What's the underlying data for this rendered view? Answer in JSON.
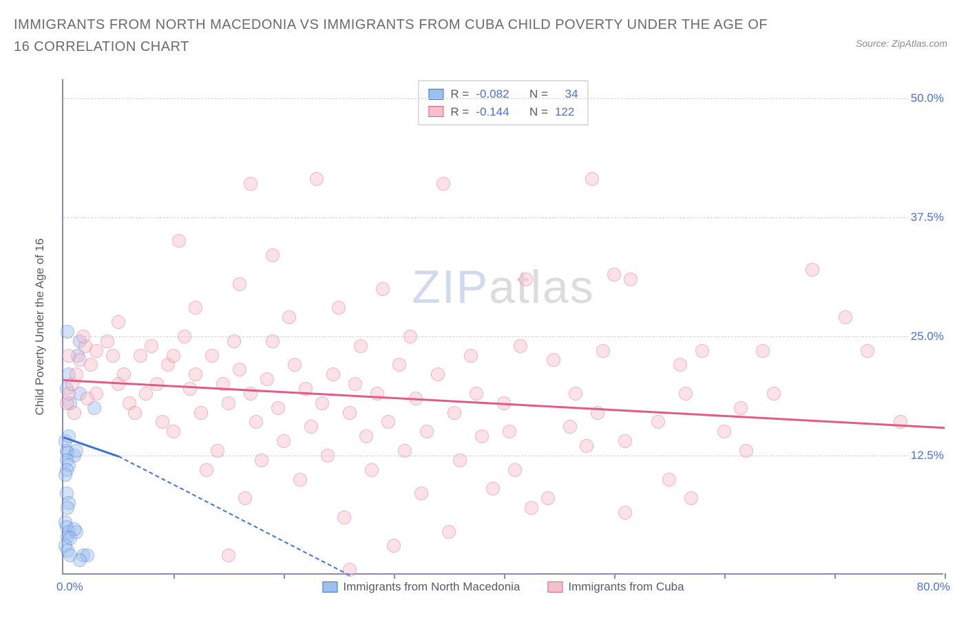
{
  "title": "IMMIGRANTS FROM NORTH MACEDONIA VS IMMIGRANTS FROM CUBA CHILD POVERTY UNDER THE AGE OF 16 CORRELATION CHART",
  "source_label": "Source: ZipAtlas.com",
  "watermark": {
    "part1": "ZIP",
    "part2": "atlas"
  },
  "y_axis_title": "Child Poverty Under the Age of 16",
  "chart": {
    "type": "scatter",
    "x_domain": [
      0,
      80
    ],
    "y_domain": [
      0,
      52
    ],
    "x_ticks": [
      0,
      10,
      20,
      30,
      40,
      50,
      60,
      70,
      80
    ],
    "y_grid": [
      12.5,
      25,
      37.5,
      50
    ],
    "y_right_labels": [
      "12.5%",
      "25.0%",
      "37.5%",
      "50.0%"
    ],
    "x_min_label": "0.0%",
    "x_max_label": "80.0%",
    "background_color": "#ffffff",
    "grid_color": "#d0d0d8",
    "axis_color": "#8a8ab0",
    "point_radius": 10,
    "point_opacity": 0.45
  },
  "series": [
    {
      "name": "Immigrants from North Macedonia",
      "color_fill": "#9fc0ee",
      "color_stroke": "#3d73d0",
      "R": "-0.082",
      "N": "34",
      "trend": {
        "x1": 0,
        "y1": 14.5,
        "x2": 5,
        "y2": 12.5,
        "dash_to_x": 26,
        "dash_to_y": 0
      },
      "points": [
        [
          0.5,
          21
        ],
        [
          0.3,
          19.5
        ],
        [
          0.6,
          18
        ],
        [
          1.5,
          19
        ],
        [
          0.2,
          14
        ],
        [
          0.3,
          13
        ],
        [
          0.4,
          12.8
        ],
        [
          1.0,
          12.5
        ],
        [
          0.3,
          12
        ],
        [
          0.5,
          11.5
        ],
        [
          0.3,
          11
        ],
        [
          0.2,
          10.5
        ],
        [
          1.2,
          13
        ],
        [
          0.5,
          14.5
        ],
        [
          0.3,
          8.5
        ],
        [
          0.5,
          7.5
        ],
        [
          0.4,
          7
        ],
        [
          0.2,
          5.5
        ],
        [
          0.3,
          5
        ],
        [
          0.5,
          4.5
        ],
        [
          0.4,
          4
        ],
        [
          1.2,
          4.5
        ],
        [
          1.0,
          4.8
        ],
        [
          0.6,
          3.8
        ],
        [
          0.2,
          3
        ],
        [
          0.4,
          2.5
        ],
        [
          0.6,
          2
        ],
        [
          1.8,
          2
        ],
        [
          2.2,
          2
        ],
        [
          1.5,
          1.5
        ],
        [
          1.3,
          23
        ],
        [
          1.5,
          24.5
        ],
        [
          0.4,
          25.5
        ],
        [
          2.8,
          17.5
        ]
      ]
    },
    {
      "name": "Immigrants from Cuba",
      "color_fill": "#f4c0cb",
      "color_stroke": "#e15b82",
      "R": "-0.144",
      "N": "122",
      "trend": {
        "x1": 0,
        "y1": 20.5,
        "x2": 80,
        "y2": 15.5
      },
      "points": [
        [
          0.3,
          18
        ],
        [
          0.5,
          19
        ],
        [
          1,
          17
        ],
        [
          0.8,
          20
        ],
        [
          1.2,
          21
        ],
        [
          0.5,
          23
        ],
        [
          1.5,
          22.5
        ],
        [
          2,
          24
        ],
        [
          2.5,
          22
        ],
        [
          3,
          23.5
        ],
        [
          1.8,
          25
        ],
        [
          2.2,
          18.5
        ],
        [
          3,
          19
        ],
        [
          4,
          24.5
        ],
        [
          4.5,
          23
        ],
        [
          5,
          26.5
        ],
        [
          5,
          20
        ],
        [
          5.5,
          21
        ],
        [
          6,
          18
        ],
        [
          6.5,
          17
        ],
        [
          7,
          23
        ],
        [
          7.5,
          19
        ],
        [
          8,
          24
        ],
        [
          8.5,
          20
        ],
        [
          9,
          16
        ],
        [
          9.5,
          22
        ],
        [
          10,
          15
        ],
        [
          10.5,
          35
        ],
        [
          10,
          23
        ],
        [
          11,
          25
        ],
        [
          11.5,
          19.5
        ],
        [
          12,
          21
        ],
        [
          12,
          28
        ],
        [
          12.5,
          17
        ],
        [
          13,
          11
        ],
        [
          13.5,
          23
        ],
        [
          14,
          13
        ],
        [
          14.5,
          20
        ],
        [
          15,
          2
        ],
        [
          15,
          18
        ],
        [
          15.5,
          24.5
        ],
        [
          16,
          21.5
        ],
        [
          16,
          30.5
        ],
        [
          16.5,
          8
        ],
        [
          17,
          19
        ],
        [
          17,
          41
        ],
        [
          17.5,
          16
        ],
        [
          18,
          12
        ],
        [
          18.5,
          20.5
        ],
        [
          19,
          24.5
        ],
        [
          19,
          33.5
        ],
        [
          19.5,
          17.5
        ],
        [
          20,
          14
        ],
        [
          20.5,
          27
        ],
        [
          21,
          22
        ],
        [
          21.5,
          10
        ],
        [
          22,
          19.5
        ],
        [
          22.5,
          15.5
        ],
        [
          23,
          41.5
        ],
        [
          23.5,
          18
        ],
        [
          24,
          12.5
        ],
        [
          24.5,
          21
        ],
        [
          25,
          28
        ],
        [
          25.5,
          6
        ],
        [
          26,
          17
        ],
        [
          26,
          0.5
        ],
        [
          26.5,
          20
        ],
        [
          27,
          24
        ],
        [
          27.5,
          14.5
        ],
        [
          28,
          11
        ],
        [
          28.5,
          19
        ],
        [
          29,
          30
        ],
        [
          29.5,
          16
        ],
        [
          30,
          3
        ],
        [
          30.5,
          22
        ],
        [
          31,
          13
        ],
        [
          31.5,
          25
        ],
        [
          32,
          18.5
        ],
        [
          32.5,
          8.5
        ],
        [
          33,
          15
        ],
        [
          34,
          21
        ],
        [
          34.5,
          41
        ],
        [
          35,
          4.5
        ],
        [
          35.5,
          17
        ],
        [
          36,
          12
        ],
        [
          37,
          23
        ],
        [
          37.5,
          19
        ],
        [
          38,
          14.5
        ],
        [
          39,
          9
        ],
        [
          40,
          18
        ],
        [
          40.5,
          15
        ],
        [
          41,
          11
        ],
        [
          41.5,
          24
        ],
        [
          42,
          31
        ],
        [
          42.5,
          7
        ],
        [
          44,
          8
        ],
        [
          44.5,
          22.5
        ],
        [
          46,
          15.5
        ],
        [
          46.5,
          19
        ],
        [
          47.5,
          13.5
        ],
        [
          48,
          41.5
        ],
        [
          48.5,
          17
        ],
        [
          49,
          23.5
        ],
        [
          50,
          31.5
        ],
        [
          51,
          14
        ],
        [
          51.5,
          31
        ],
        [
          51,
          6.5
        ],
        [
          54,
          16
        ],
        [
          55,
          10
        ],
        [
          56,
          22
        ],
        [
          56.5,
          19
        ],
        [
          57,
          8
        ],
        [
          58,
          23.5
        ],
        [
          60,
          15
        ],
        [
          61.5,
          17.5
        ],
        [
          62,
          13
        ],
        [
          63.5,
          23.5
        ],
        [
          64.5,
          19
        ],
        [
          68,
          32
        ],
        [
          71,
          27
        ],
        [
          73,
          23.5
        ],
        [
          76,
          16
        ]
      ]
    }
  ],
  "legend": {
    "s1": "Immigrants from North Macedonia",
    "s2": "Immigrants from Cuba"
  }
}
